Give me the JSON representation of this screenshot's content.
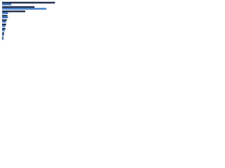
{
  "chart_data": {
    "type": "hbar",
    "categories": [
      null,
      null,
      null,
      null,
      null,
      null,
      null,
      null,
      null
    ],
    "series": [
      {
        "color": "#1c2b4b",
        "values": [
          80,
          49,
          35,
          8,
          7,
          6,
          5,
          3,
          2
        ]
      },
      {
        "color": "#3a76c4",
        "values": [
          14,
          67,
          9,
          9,
          6,
          5,
          4,
          3,
          2
        ]
      }
    ],
    "xlim": [
      0,
      100
    ]
  }
}
